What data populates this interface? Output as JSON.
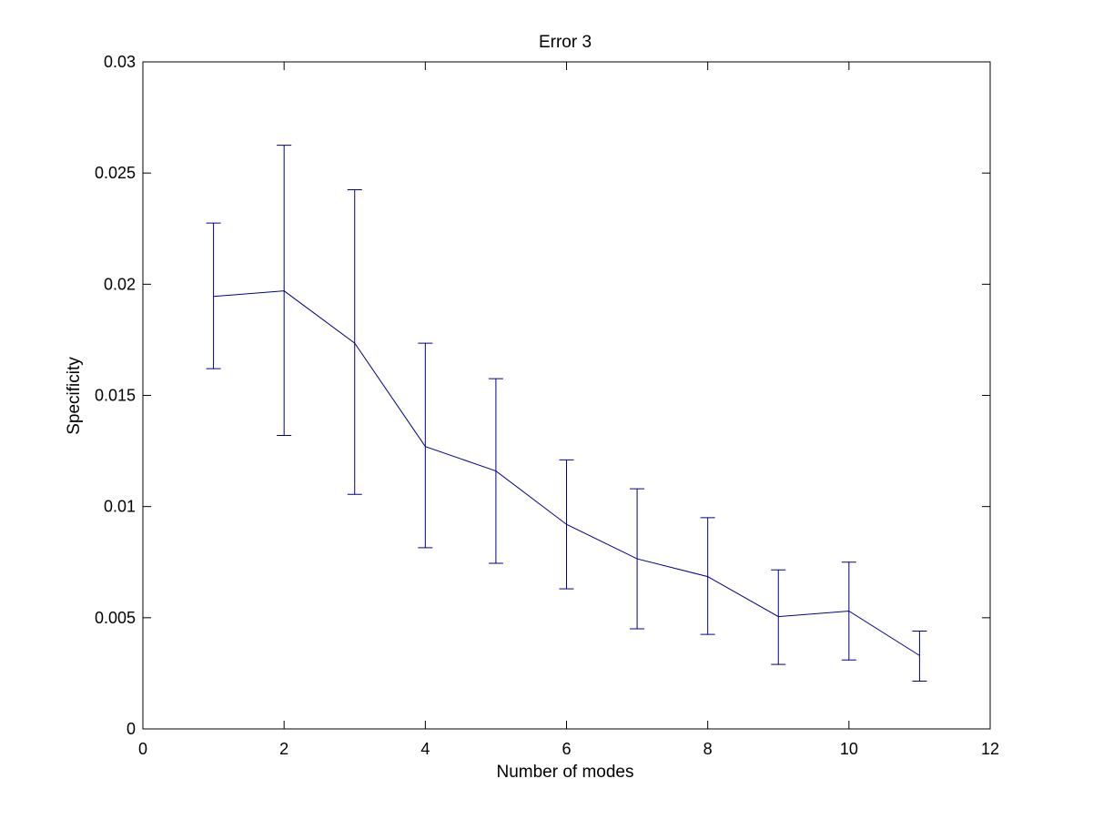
{
  "chart_data": {
    "type": "line",
    "title": "Error 3",
    "xlabel": "Number of modes",
    "ylabel": "Specificity",
    "xlim": [
      0,
      12
    ],
    "ylim": [
      0,
      0.03
    ],
    "x_ticks": [
      0,
      2,
      4,
      6,
      8,
      10,
      12
    ],
    "x_tick_labels": [
      "0",
      "2",
      "4",
      "6",
      "8",
      "10",
      "12"
    ],
    "y_ticks": [
      0,
      0.005,
      0.01,
      0.015,
      0.02,
      0.025,
      0.03
    ],
    "y_tick_labels": [
      "0",
      "0.005",
      "0.01",
      "0.015",
      "0.02",
      "0.025",
      "0.03"
    ],
    "grid": false,
    "error_bars": true,
    "series": [
      {
        "color": "#00008b",
        "x": [
          1,
          2,
          3,
          4,
          5,
          6,
          7,
          8,
          9,
          10,
          11
        ],
        "y": [
          0.01945,
          0.0197,
          0.01735,
          0.0127,
          0.0116,
          0.0092,
          0.00765,
          0.00685,
          0.00505,
          0.0053,
          0.0033
        ],
        "lower": [
          0.0162,
          0.0132,
          0.01055,
          0.00815,
          0.00745,
          0.0063,
          0.0045,
          0.00425,
          0.0029,
          0.0031,
          0.00215
        ],
        "upper": [
          0.02275,
          0.02625,
          0.02425,
          0.01735,
          0.01575,
          0.0121,
          0.0108,
          0.0095,
          0.00715,
          0.0075,
          0.0044
        ]
      }
    ]
  }
}
